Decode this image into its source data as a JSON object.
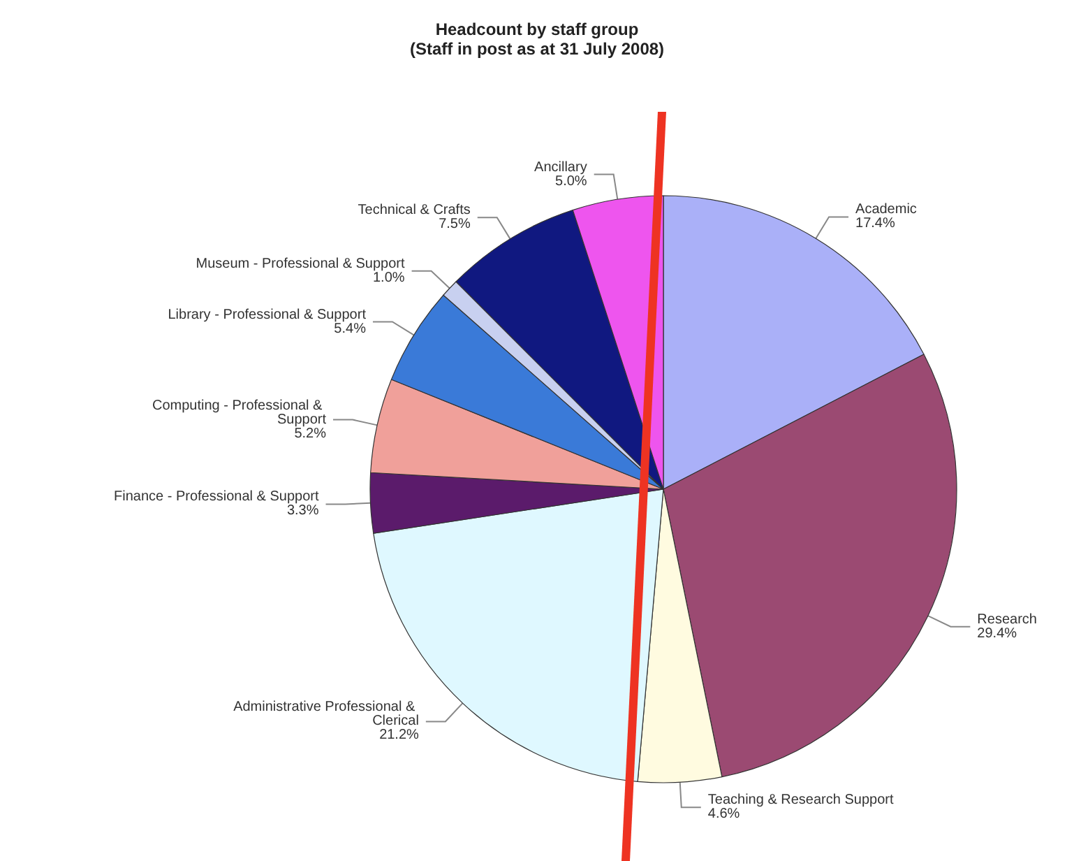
{
  "chart_data": {
    "type": "pie",
    "title": "Headcount by staff group",
    "subtitle": "(Staff in post as at 31 July 2008)",
    "categories": [
      "Academic",
      "Research",
      "Teaching & Research Support",
      "Administrative Professional & Clerical",
      "Finance - Professional & Support",
      "Computing - Professional & Support",
      "Library - Professional & Support",
      "Museum - Professional & Support",
      "Technical & Crafts",
      "Ancillary"
    ],
    "values": [
      17.4,
      29.4,
      4.6,
      21.2,
      3.3,
      5.2,
      5.4,
      1.0,
      7.5,
      5.0
    ],
    "value_labels": [
      "17.4%",
      "29.4%",
      "4.6%",
      "21.2%",
      "3.3%",
      "5.2%",
      "5.4%",
      "1.0%",
      "7.5%",
      "5.0%"
    ],
    "colors": [
      "#aab0f8",
      "#9b4a72",
      "#fffbe0",
      "#dff8ff",
      "#5b1b6b",
      "#f0a09a",
      "#3a7ad8",
      "#c8d0f0",
      "#101880",
      "#ee55ee"
    ],
    "legend": false
  }
}
